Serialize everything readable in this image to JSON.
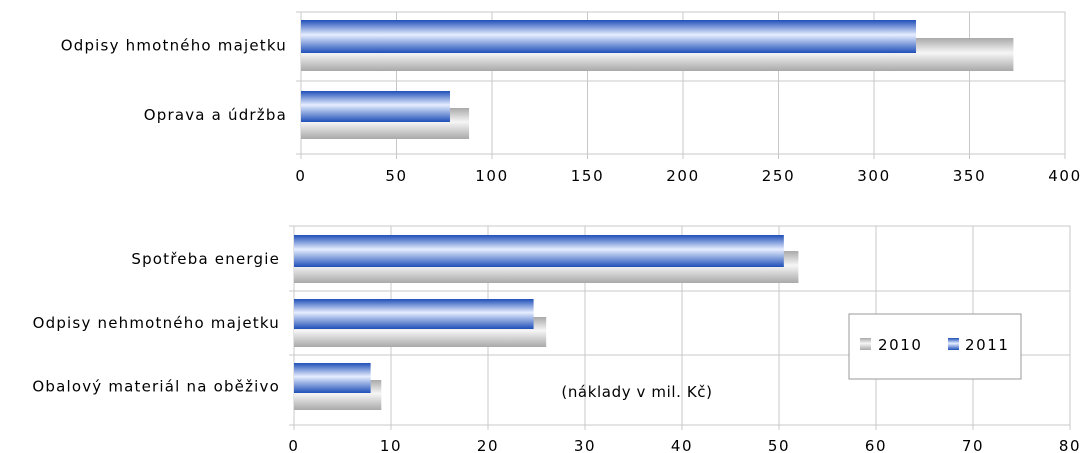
{
  "chart_data": [
    {
      "type": "bar",
      "orientation": "horizontal",
      "categories": [
        "Odpisy hmotného majetku",
        "Oprava a údržba"
      ],
      "series": [
        {
          "name": "2010",
          "values": [
            373,
            88
          ]
        },
        {
          "name": "2011",
          "values": [
            322,
            78
          ]
        }
      ],
      "xlim": [
        0,
        400
      ],
      "xticks": [
        "0",
        "50",
        "100",
        "150",
        "200",
        "250",
        "300",
        "350",
        "400"
      ],
      "grid": "vertical"
    },
    {
      "type": "bar",
      "orientation": "horizontal",
      "categories": [
        "Spotřeba energie",
        "Odpisy nehmotného majetku",
        "Obalový materiál na oběživo"
      ],
      "series": [
        {
          "name": "2010",
          "values": [
            52,
            26,
            9
          ]
        },
        {
          "name": "2011",
          "values": [
            50.5,
            24.7,
            7.9
          ]
        }
      ],
      "xlim": [
        0,
        80
      ],
      "xticks": [
        "0",
        "10",
        "20",
        "30",
        "40",
        "50",
        "60",
        "70",
        "80"
      ],
      "grid": "vertical",
      "annotation": "(náklady v mil. Kč)",
      "legend": {
        "position": "right",
        "entries": [
          "2010",
          "2011"
        ]
      }
    }
  ],
  "colors": {
    "series_2010": "#d2d2d2",
    "series_2011": "#3a6cd6",
    "grid": "#c8c8c8"
  }
}
